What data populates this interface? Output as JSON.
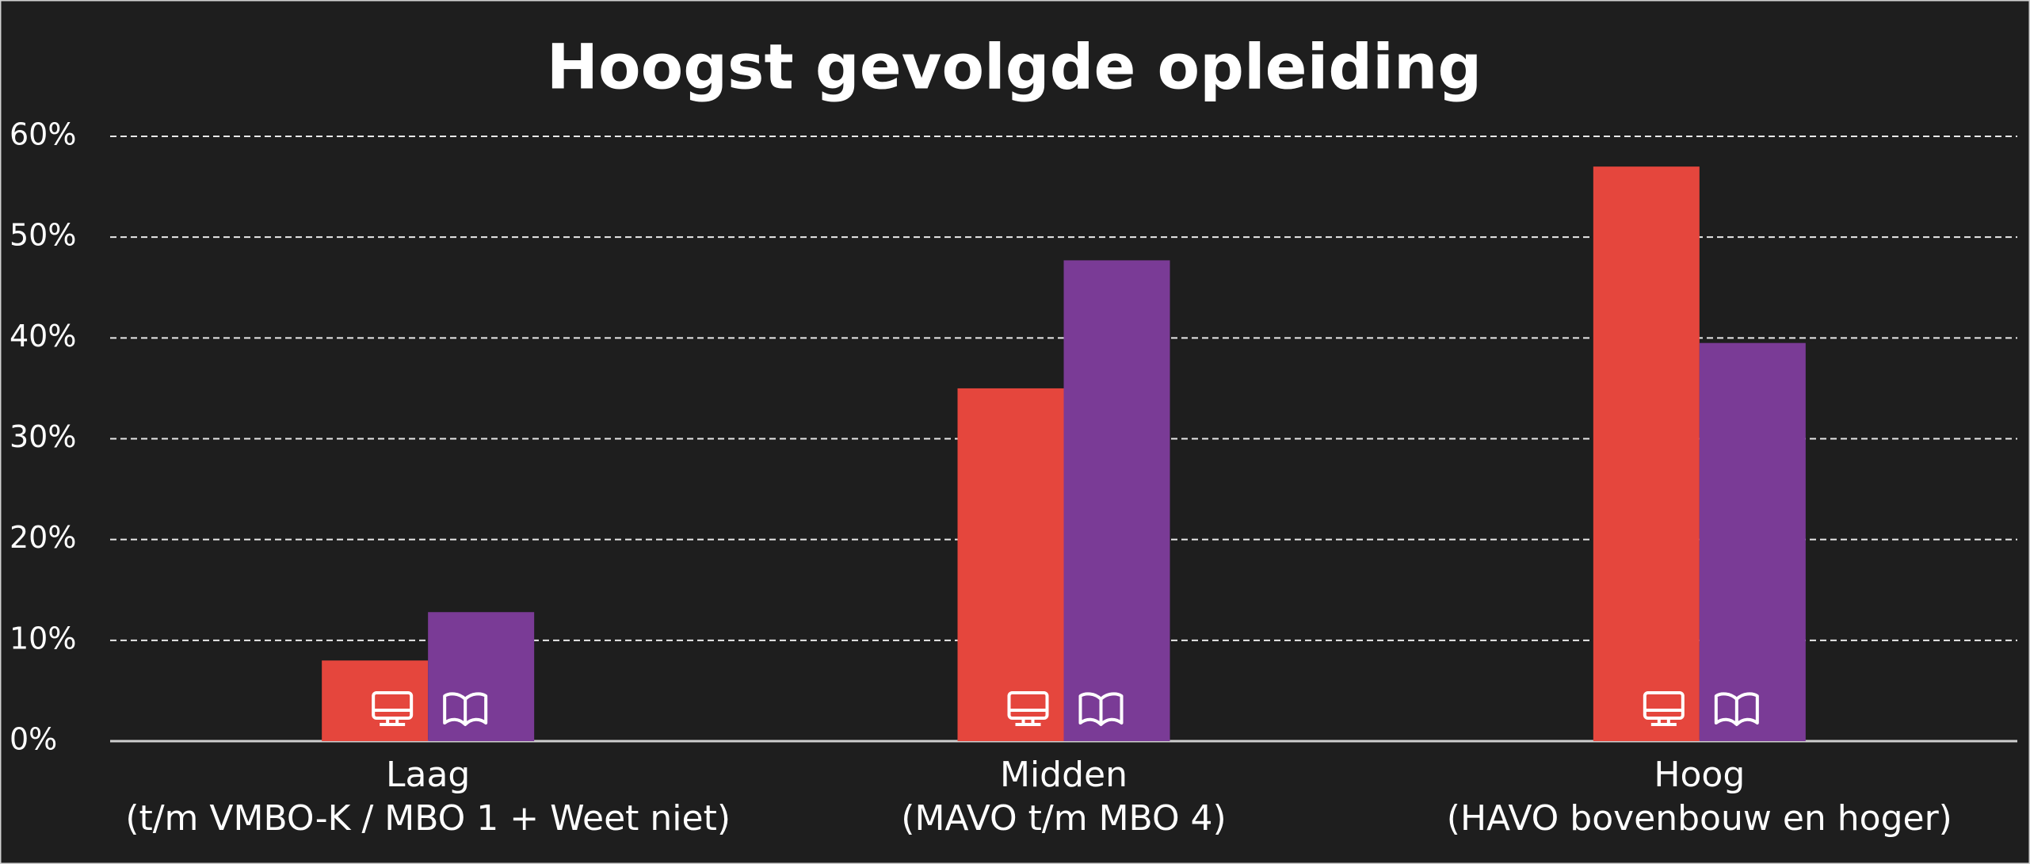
{
  "chart_data": {
    "type": "bar",
    "title": "Hoogst gevolgde opleiding",
    "categories": [
      [
        "Laag",
        "(t/m VMBO-K / MBO 1 + Weet niet)"
      ],
      [
        "Midden",
        "(MAVO t/m MBO 4)"
      ],
      [
        "Hoog",
        "(HAVO bovenbouw en hoger)"
      ]
    ],
    "series": [
      {
        "color": "#e5463d",
        "values": [
          8,
          35,
          57
        ]
      },
      {
        "color": "#7a3b96",
        "values": [
          12.8,
          47.7,
          39.5
        ]
      }
    ],
    "ylim": [
      0,
      60
    ],
    "yticks": [
      {
        "value": 0,
        "label": "0%"
      },
      {
        "value": 10,
        "label": "10%"
      },
      {
        "value": 20,
        "label": "20%"
      },
      {
        "value": 30,
        "label": "30%"
      },
      {
        "value": 40,
        "label": "40%"
      },
      {
        "value": 50,
        "label": "50%"
      },
      {
        "value": 60,
        "label": "60%"
      }
    ],
    "grid": true
  }
}
